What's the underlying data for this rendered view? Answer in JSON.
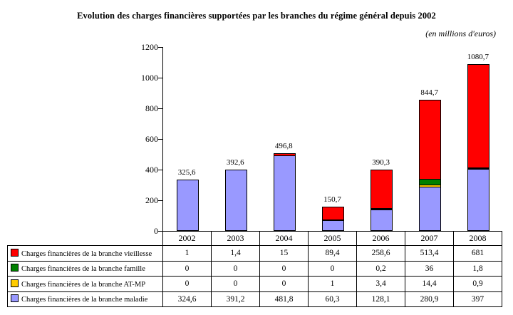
{
  "title": "Evolution des charges financières supportées par les  branches du régime général depuis 2002",
  "subtitle": "(en millions d'euros)",
  "chart_data": {
    "type": "bar",
    "stacked": true,
    "title": "Evolution des charges financières supportées par les  branches du régime général depuis 2002",
    "unit_note": "(en millions d'euros)",
    "categories": [
      "2002",
      "2003",
      "2004",
      "2005",
      "2006",
      "2007",
      "2008"
    ],
    "series": [
      {
        "key": "vieillesse",
        "name": "Charges financières de la branche vieillesse",
        "color": "#FF0000",
        "values": [
          1,
          1.4,
          15,
          89.4,
          258.6,
          513.4,
          681
        ],
        "labels": [
          "1",
          "1,4",
          "15",
          "89,4",
          "258,6",
          "513,4",
          "681"
        ]
      },
      {
        "key": "famille",
        "name": "Charges financières de la branche famille",
        "color": "#008000",
        "values": [
          0,
          0,
          0,
          0,
          0.2,
          36,
          1.8
        ],
        "labels": [
          "0",
          "0",
          "0",
          "0",
          "0,2",
          "36",
          "1,8"
        ]
      },
      {
        "key": "at-mp",
        "name": "Charges financières de la branche AT-MP",
        "color": "#FFCC00",
        "values": [
          0,
          0,
          0,
          1,
          3.4,
          14.4,
          0.9
        ],
        "labels": [
          "0",
          "0",
          "0",
          "1",
          "3,4",
          "14,4",
          "0,9"
        ]
      },
      {
        "key": "maladie",
        "name": "Charges financières de la branche maladie",
        "color": "#9999FF",
        "values": [
          324.6,
          391.2,
          481.8,
          60.3,
          128.1,
          280.9,
          397
        ],
        "labels": [
          "324,6",
          "391,2",
          "481,8",
          "60,3",
          "128,1",
          "280,9",
          "397"
        ]
      }
    ],
    "totals_labels": [
      "325,6",
      "392,6",
      "496,8",
      "150,7",
      "390,3",
      "844,7",
      "1080,7"
    ],
    "yticks": [
      0,
      200,
      400,
      600,
      800,
      1000,
      1200
    ],
    "ylim": [
      0,
      1200
    ],
    "grid": false,
    "legend_position": "table-left"
  }
}
